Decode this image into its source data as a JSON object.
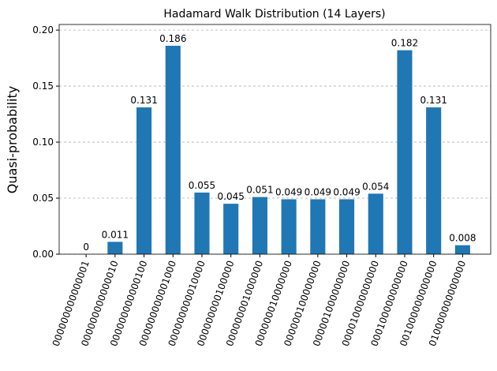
{
  "chart_data": {
    "type": "bar",
    "title": "Hadamard Walk Distribution (14 Layers)",
    "y_label": "Quasi-probability",
    "categories": [
      "000000000000001",
      "000000000000010",
      "000000000000100",
      "000000000001000",
      "000000000010000",
      "000000000100000",
      "000000001000000",
      "000000010000000",
      "000000100000000",
      "000001000000000",
      "000010000000000",
      "000100000000000",
      "001000000000000",
      "010000000000000"
    ],
    "values": [
      0,
      0.011,
      0.131,
      0.186,
      0.055,
      0.045,
      0.051,
      0.049,
      0.049,
      0.049,
      0.054,
      0.182,
      0.131,
      0.008
    ],
    "color": "#1f77b4",
    "ylim": [
      0,
      0.205
    ],
    "yticks": [
      {
        "value": 0,
        "label": "0.00"
      },
      {
        "value": 0.05,
        "label": "0.05"
      },
      {
        "value": 0.1,
        "label": "0.10"
      },
      {
        "value": 0.15,
        "label": "0.15"
      },
      {
        "value": 0.2,
        "label": "0.20"
      }
    ],
    "grid": true
  }
}
